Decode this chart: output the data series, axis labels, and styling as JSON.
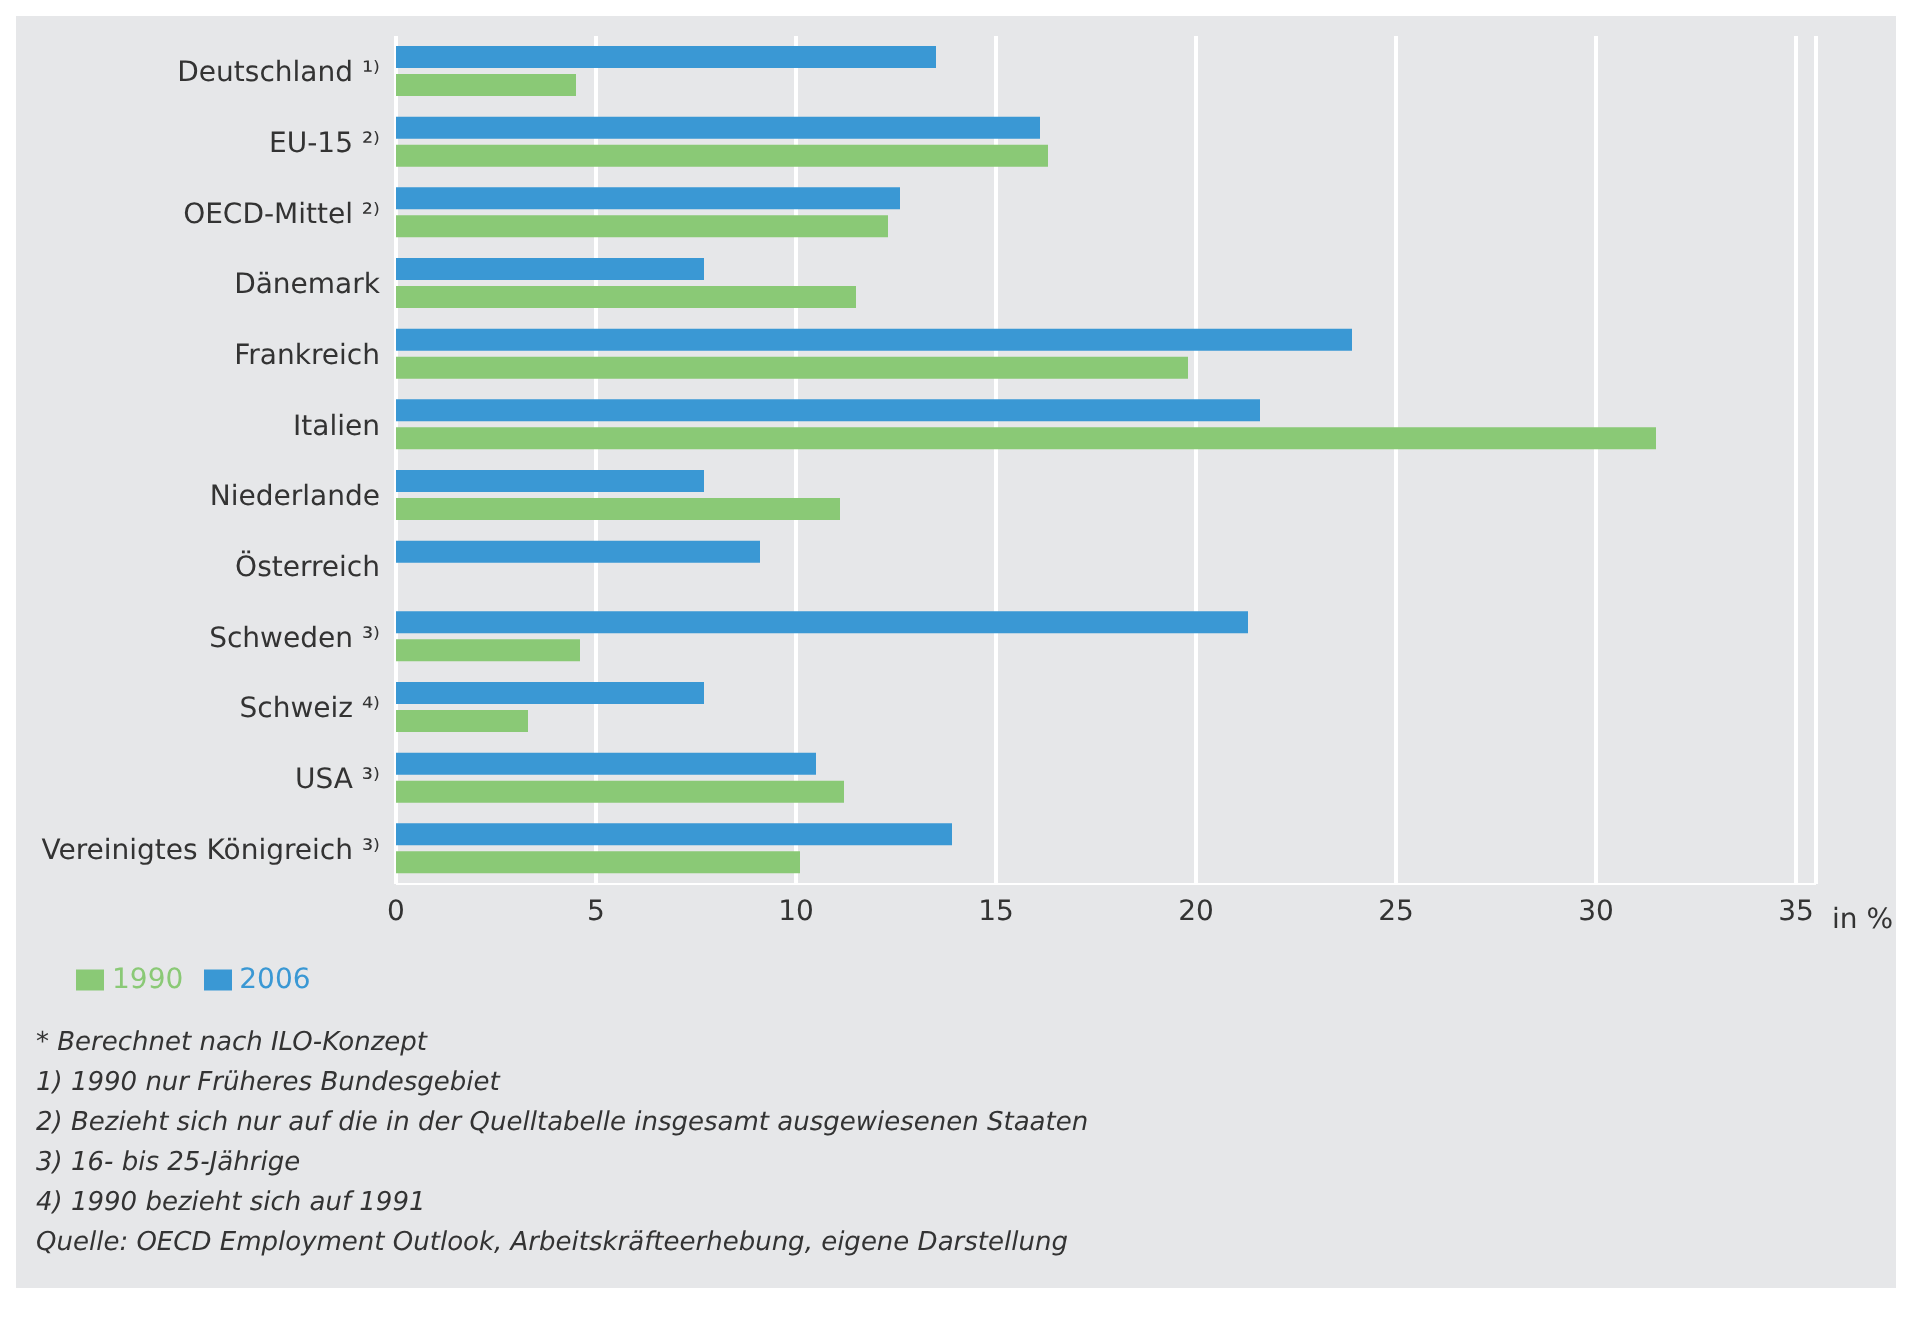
{
  "chart_data": {
    "type": "bar",
    "orientation": "horizontal",
    "xlabel": "in %",
    "categories": [
      "Deutschland ¹⁾",
      "EU-15 ²⁾",
      "OECD-Mittel ²⁾",
      "Dänemark",
      "Frankreich",
      "Italien",
      "Niederlande",
      "Österreich",
      "Schweden ³⁾",
      "Schweiz ⁴⁾",
      "USA ³⁾",
      "Vereinigtes Königreich ³⁾"
    ],
    "series": [
      {
        "name": "2006",
        "color": "#3a98d4",
        "values": [
          13.5,
          16.1,
          12.6,
          7.7,
          23.9,
          21.6,
          7.7,
          9.1,
          21.3,
          7.7,
          10.5,
          13.9
        ]
      },
      {
        "name": "1990",
        "color": "#8ac976",
        "values": [
          4.5,
          16.3,
          12.3,
          11.5,
          19.8,
          31.5,
          11.1,
          null,
          4.6,
          3.3,
          11.2,
          10.1
        ]
      }
    ],
    "xlim": [
      0,
      35.5
    ],
    "xticks": [
      0,
      5,
      10,
      15,
      20,
      25,
      30,
      35
    ],
    "grid": "x",
    "legend": "bottom left",
    "annotations": [
      "* Berechnet nach ILO-Konzept",
      "1) 1990 nur Früheres Bundesgebiet",
      "2) Bezieht sich nur auf die in der Quelltabelle insgesamt ausgewiesenen Staaten",
      "3) 16- bis 25-Jährige",
      "4) 1990 bezieht sich auf 1991",
      "Quelle: OECD Employment Outlook, Arbeitskräfteerhebung, eigene Darstellung"
    ]
  }
}
